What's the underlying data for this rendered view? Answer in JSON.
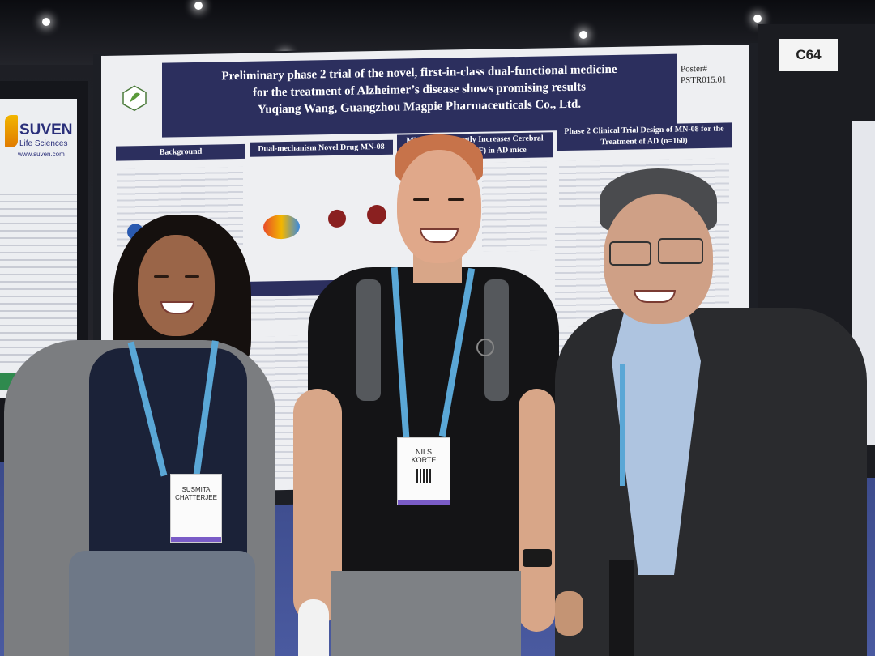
{
  "scene": {
    "poster_title": [
      "Preliminary phase 2 trial of the novel, first-in-class dual-functional medicine",
      "for the treatment of Alzheimer’s disease shows promising results",
      "Yuqiang Wang, Guangzhou Magpie Pharmaceuticals Co., Ltd."
    ],
    "poster_number_label": "Poster#",
    "poster_number": "PSTR015.01",
    "sections": {
      "background": "Background",
      "drug": "Dual-mechanism Novel Drug MN-08",
      "cbf": "MN-08 Significantly Increases Cerebral Blood Flow (CBF) in AD mice",
      "trial": "Phase 2 Clinical Trial Design of MN-08 for the Treatment of AD (n=160)"
    },
    "booth_number": "C64",
    "exhibitor_logo": "SUVEN",
    "exhibitor_sub": "Life Sciences",
    "exhibitor_url": "www.suven.com",
    "badges": {
      "left_name": "SUSMITA CHATTERJEE",
      "middle_first": "NILS",
      "middle_last": "KORTE"
    },
    "colors": {
      "poster_navy": "#2c2f5e",
      "lanyard_blue": "#5aa7d6",
      "carpet_blue": "#4a5aa0"
    }
  }
}
